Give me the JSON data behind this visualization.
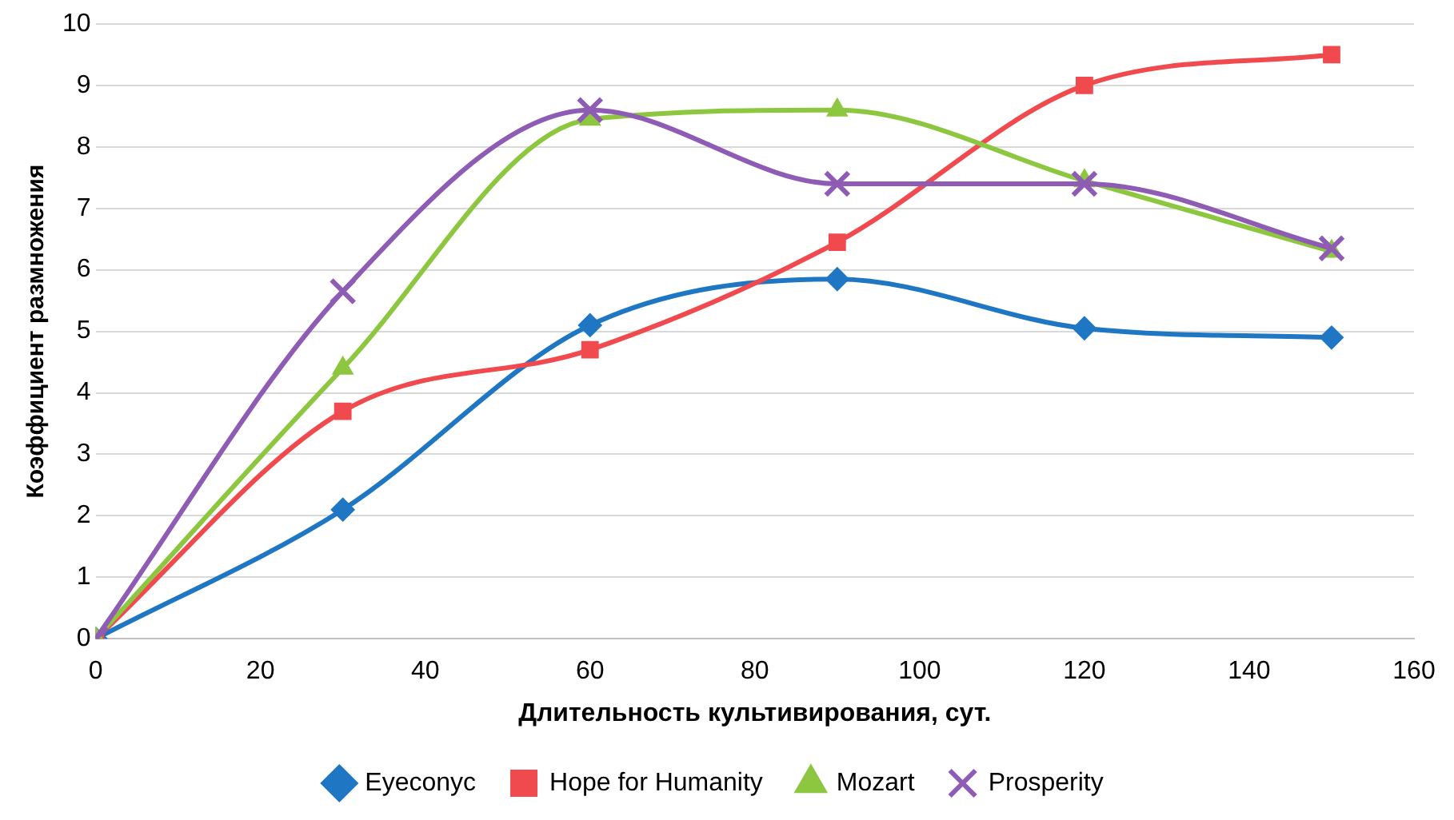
{
  "chart_data": {
    "type": "line",
    "xlabel": "Длительность культивирования, сут.",
    "ylabel": "Коэффициент размножения",
    "x": [
      0,
      30,
      60,
      90,
      120,
      150
    ],
    "series": [
      {
        "name": "Eyeconyc",
        "color": "#1f77c4",
        "marker": "diamond",
        "values": [
          0,
          2.1,
          5.1,
          5.85,
          5.05,
          4.9
        ]
      },
      {
        "name": "Hope for Humanity",
        "color": "#f04a4f",
        "marker": "square",
        "values": [
          0,
          3.7,
          4.7,
          6.45,
          9.0,
          9.5
        ]
      },
      {
        "name": "Mozart",
        "color": "#8dc63f",
        "marker": "triangle",
        "values": [
          0,
          4.4,
          8.45,
          8.6,
          7.45,
          6.3
        ]
      },
      {
        "name": "Prosperity",
        "color": "#8e5bb5",
        "marker": "cross",
        "values": [
          0,
          5.65,
          8.6,
          7.4,
          7.4,
          6.35
        ]
      }
    ],
    "xlim": [
      0,
      160
    ],
    "xticks": [
      0,
      20,
      40,
      60,
      80,
      100,
      120,
      140,
      160
    ],
    "ylim": [
      0,
      10
    ],
    "yticks": [
      0,
      1,
      2,
      3,
      4,
      5,
      6,
      7,
      8,
      9,
      10
    ],
    "grid": "y",
    "legend": "bottom"
  }
}
